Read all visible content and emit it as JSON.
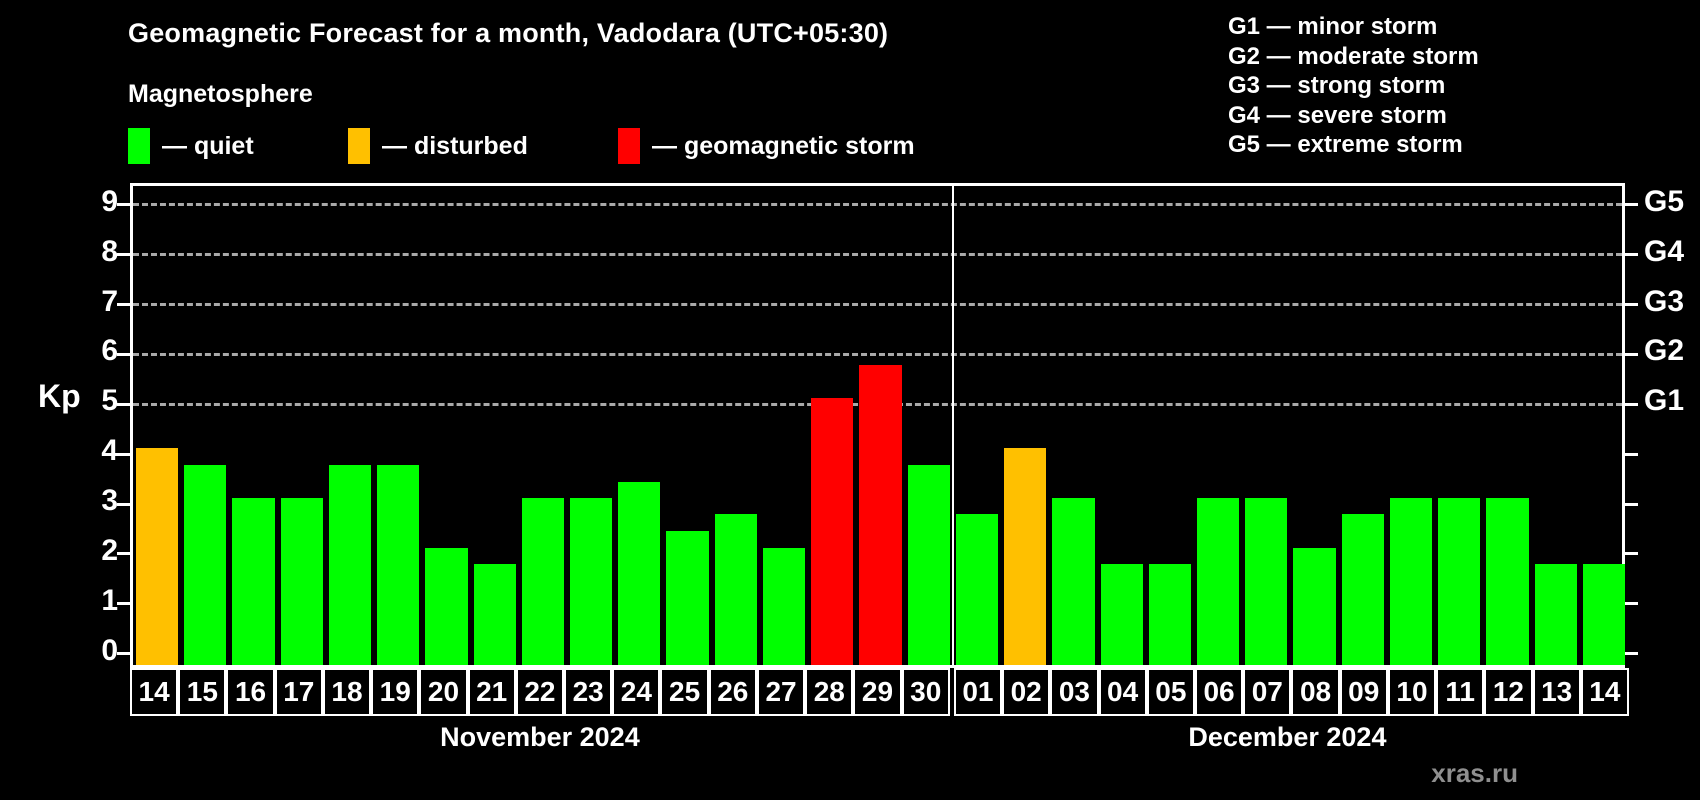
{
  "title": "Geomagnetic Forecast for a month, Vadodara (UTC+05:30)",
  "subtitle": "Magnetosphere",
  "legend": [
    {
      "key": "quiet",
      "label": "— quiet",
      "color": "#00ff00"
    },
    {
      "key": "disturbed",
      "label": "— disturbed",
      "color": "#ffc000"
    },
    {
      "key": "storm",
      "label": "— geomagnetic storm",
      "color": "#ff0000"
    }
  ],
  "g_scale": [
    "G1 — minor storm",
    "G2 — moderate storm",
    "G3 — strong storm",
    "G4 — severe storm",
    "G5 — extreme storm"
  ],
  "watermark": "xras.ru",
  "chart_data": {
    "type": "bar",
    "title": "Geomagnetic Forecast for a month, Vadodara (UTC+05:30)",
    "ylabel": "Kp",
    "ylim": [
      0,
      9
    ],
    "yticks": [
      0,
      1,
      2,
      3,
      4,
      5,
      6,
      7,
      8,
      9
    ],
    "grid": "dashed horizontal lines at Kp 5-9",
    "right_axis_labels": [
      {
        "kp": 5,
        "label": "G1"
      },
      {
        "kp": 6,
        "label": "G2"
      },
      {
        "kp": 7,
        "label": "G3"
      },
      {
        "kp": 8,
        "label": "G4"
      },
      {
        "kp": 9,
        "label": "G5"
      }
    ],
    "months": [
      {
        "label": "November 2024",
        "days": 17
      },
      {
        "label": "December 2024",
        "days": 14
      }
    ],
    "bars": [
      {
        "date": "14",
        "kp": 4,
        "status": "disturbed"
      },
      {
        "date": "15",
        "kp": 3.67,
        "status": "quiet"
      },
      {
        "date": "16",
        "kp": 3,
        "status": "quiet"
      },
      {
        "date": "17",
        "kp": 3,
        "status": "quiet"
      },
      {
        "date": "18",
        "kp": 3.67,
        "status": "quiet"
      },
      {
        "date": "19",
        "kp": 3.67,
        "status": "quiet"
      },
      {
        "date": "20",
        "kp": 2,
        "status": "quiet"
      },
      {
        "date": "21",
        "kp": 1.67,
        "status": "quiet"
      },
      {
        "date": "22",
        "kp": 3,
        "status": "quiet"
      },
      {
        "date": "23",
        "kp": 3,
        "status": "quiet"
      },
      {
        "date": "24",
        "kp": 3.33,
        "status": "quiet"
      },
      {
        "date": "25",
        "kp": 2.33,
        "status": "quiet"
      },
      {
        "date": "26",
        "kp": 2.67,
        "status": "quiet"
      },
      {
        "date": "27",
        "kp": 2,
        "status": "quiet"
      },
      {
        "date": "28",
        "kp": 5,
        "status": "storm"
      },
      {
        "date": "29",
        "kp": 5.67,
        "status": "storm"
      },
      {
        "date": "30",
        "kp": 3.67,
        "status": "quiet"
      },
      {
        "date": "01",
        "kp": 2.67,
        "status": "quiet"
      },
      {
        "date": "02",
        "kp": 4,
        "status": "disturbed"
      },
      {
        "date": "03",
        "kp": 3,
        "status": "quiet"
      },
      {
        "date": "04",
        "kp": 1.67,
        "status": "quiet"
      },
      {
        "date": "05",
        "kp": 1.67,
        "status": "quiet"
      },
      {
        "date": "06",
        "kp": 3,
        "status": "quiet"
      },
      {
        "date": "07",
        "kp": 3,
        "status": "quiet"
      },
      {
        "date": "08",
        "kp": 2,
        "status": "quiet"
      },
      {
        "date": "09",
        "kp": 2.67,
        "status": "quiet"
      },
      {
        "date": "10",
        "kp": 3,
        "status": "quiet"
      },
      {
        "date": "11",
        "kp": 3,
        "status": "quiet"
      },
      {
        "date": "12",
        "kp": 3,
        "status": "quiet"
      },
      {
        "date": "13",
        "kp": 1.67,
        "status": "quiet"
      },
      {
        "date": "14",
        "kp": 1.67,
        "status": "quiet"
      }
    ]
  }
}
